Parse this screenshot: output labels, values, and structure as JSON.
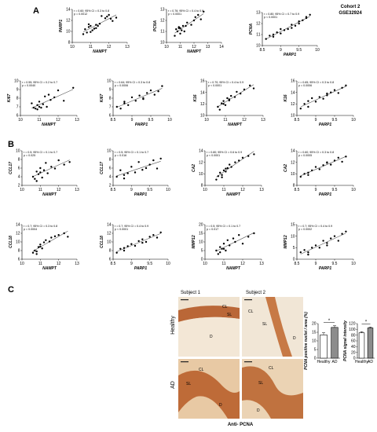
{
  "cohort": {
    "line1": "Cohort 2",
    "line2": "GSE32924"
  },
  "panel_labels": {
    "a": "A",
    "b": "B",
    "c": "C"
  },
  "microscopy": {
    "subject1": "Subject 1",
    "subject2": "Subject 2",
    "row_healthy": "Healthy",
    "row_ad": "AD",
    "footer": "Anti- PCNA",
    "labels_healthy_1": [
      "CL",
      "SL",
      "D"
    ],
    "labels_healthy_2": [
      "CL",
      "SL",
      "D"
    ],
    "labels_ad_1": [
      "CL",
      "SL",
      "D"
    ],
    "labels_ad_2": [
      "CL",
      "SL",
      "D"
    ]
  },
  "chart_data": [
    {
      "type": "scatter",
      "ylabel": "PARP1",
      "xlabel": "NAMPT",
      "xlim": [
        10,
        13
      ],
      "ylim": [
        8,
        14
      ],
      "xticks": [
        10,
        11,
        12,
        13
      ],
      "yticks": [
        8,
        10,
        12,
        14
      ],
      "stat1": "r = 0.60; 95% CI = 0.3 to 0.8",
      "stat2": "p = 0.0012",
      "x": [
        10.6,
        10.7,
        10.8,
        10.9,
        11.0,
        11.0,
        11.2,
        11.3,
        11.4,
        11.5,
        11.6,
        11.8,
        11.9,
        12.0,
        12.1,
        12.2,
        12.4,
        11.1,
        10.9,
        11.3
      ],
      "y": [
        9.5,
        10.4,
        9.8,
        10.8,
        11.0,
        9.9,
        10.5,
        11.2,
        11.0,
        11.4,
        12.8,
        12.4,
        12.7,
        13.0,
        12.3,
        11.9,
        12.5,
        10.2,
        11.3,
        10.6
      ]
    },
    {
      "type": "scatter",
      "ylabel": "PCNA",
      "xlabel": "NAMPT",
      "xlim": [
        10,
        14
      ],
      "ylim": [
        10,
        13
      ],
      "xticks": [
        10,
        11,
        12,
        13,
        14
      ],
      "yticks": [
        10,
        11,
        12,
        13
      ],
      "stat1": "r = 0.76; 95% CI = 0.4 to 0.9",
      "stat2": "p < 0.0001",
      "x": [
        10.6,
        10.7,
        10.8,
        10.9,
        11.0,
        11.1,
        11.2,
        11.3,
        11.5,
        11.8,
        12.0,
        12.3,
        12.5,
        12.7,
        11.0,
        10.9,
        11.4,
        12.1
      ],
      "y": [
        10.6,
        11.2,
        11.0,
        11.4,
        11.3,
        11.1,
        11.5,
        11.0,
        11.8,
        11.6,
        12.0,
        12.5,
        12.1,
        12.8,
        10.8,
        11.3,
        11.5,
        12.3
      ]
    },
    {
      "type": "scatter",
      "ylabel": "PCNA",
      "xlabel": "PARP1",
      "xlim": [
        8.5,
        10.0
      ],
      "ylim": [
        10,
        13
      ],
      "xticks": [
        8.5,
        9.0,
        9.5,
        10.0
      ],
      "yticks": [
        10,
        11,
        12,
        13
      ],
      "stat1": "r = 0.80; 95% CI = 0.7 to 0.9",
      "stat2": "p < 0.0001",
      "x": [
        8.6,
        8.7,
        8.8,
        8.9,
        9.0,
        9.1,
        9.2,
        9.3,
        9.4,
        9.5,
        9.6,
        9.7,
        9.8,
        8.8,
        9.0,
        9.3,
        9.5,
        9.7
      ],
      "y": [
        10.6,
        10.9,
        11.0,
        11.2,
        11.1,
        11.4,
        11.5,
        11.6,
        11.8,
        12.0,
        12.3,
        12.5,
        12.8,
        10.8,
        11.5,
        11.9,
        12.2,
        12.6
      ]
    },
    {
      "type": "scatter",
      "ylabel": "Ki67",
      "xlabel": "NAMPT",
      "xlim": [
        10,
        13
      ],
      "ylim": [
        6,
        10
      ],
      "xticks": [
        10,
        11,
        12,
        13
      ],
      "yticks": [
        6,
        7,
        8,
        9,
        10
      ],
      "stat1": "r = 0.55; 95% CI = 0.2 to 0.7",
      "stat2": "p = 0.0040",
      "x": [
        10.6,
        10.7,
        10.8,
        10.9,
        11.0,
        11.1,
        11.2,
        11.3,
        11.4,
        11.5,
        11.6,
        11.8,
        12.0,
        12.3,
        12.8,
        10.9,
        11.0
      ],
      "y": [
        7.4,
        6.9,
        6.8,
        7.2,
        7.6,
        6.9,
        7.3,
        8.2,
        7.0,
        8.4,
        7.8,
        8.1,
        8.9,
        7.7,
        9.2,
        6.7,
        7.0
      ]
    },
    {
      "type": "scatter",
      "ylabel": "Ki67",
      "xlabel": "PARP1",
      "xlim": [
        8.5,
        10.0
      ],
      "ylim": [
        6,
        10
      ],
      "xticks": [
        8.5,
        9.0,
        9.5,
        10.0
      ],
      "yticks": [
        6,
        7,
        8,
        9,
        10
      ],
      "stat1": "r = 0.64; 95% CI = 0.3 to 0.8",
      "stat2": "p = 0.0006",
      "x": [
        8.6,
        8.7,
        8.8,
        8.9,
        9.0,
        9.1,
        9.2,
        9.3,
        9.4,
        9.5,
        9.6,
        9.7,
        9.8,
        8.8,
        9.3
      ],
      "y": [
        7.0,
        6.8,
        7.4,
        7.2,
        8.1,
        7.7,
        8.3,
        7.9,
        8.6,
        8.9,
        8.4,
        8.8,
        9.4,
        7.6,
        8.0
      ]
    },
    {
      "type": "scatter",
      "ylabel": "K16",
      "xlabel": "NAMPT",
      "xlim": [
        10,
        13
      ],
      "ylim": [
        10,
        16
      ],
      "xticks": [
        10,
        11,
        12,
        13
      ],
      "yticks": [
        10,
        12,
        14,
        16
      ],
      "stat1": "r = 0.70; 95% CI = 0.4 to 0.9",
      "stat2": "p < 0.0001",
      "x": [
        10.6,
        10.7,
        10.8,
        10.9,
        11.0,
        11.1,
        11.2,
        11.3,
        11.5,
        11.6,
        11.8,
        12.0,
        12.3,
        12.5,
        10.9,
        11.2
      ],
      "y": [
        11.5,
        11.0,
        12.1,
        12.5,
        11.8,
        13.0,
        12.6,
        13.4,
        13.2,
        14.1,
        13.8,
        14.5,
        15.2,
        14.7,
        12.0,
        12.8
      ]
    },
    {
      "type": "scatter",
      "ylabel": "K16",
      "xlabel": "PARP1",
      "xlim": [
        8.5,
        10.0
      ],
      "ylim": [
        10,
        16
      ],
      "xticks": [
        8.5,
        9.0,
        9.5,
        10.0
      ],
      "yticks": [
        10,
        12,
        14,
        16
      ],
      "stat1": "r = 0.65; 95% CI = 0.3 to 0.8",
      "stat2": "p = 0.0006",
      "x": [
        8.6,
        8.7,
        8.8,
        8.9,
        9.0,
        9.1,
        9.2,
        9.3,
        9.4,
        9.5,
        9.6,
        9.7,
        9.8,
        8.8,
        9.3
      ],
      "y": [
        11.2,
        12.0,
        11.5,
        13.0,
        12.4,
        13.2,
        12.9,
        13.8,
        14.0,
        14.4,
        13.9,
        14.8,
        15.2,
        12.5,
        13.5
      ]
    },
    {
      "type": "scatter",
      "ylabel": "CCL17",
      "xlabel": "NAMPT",
      "xlim": [
        10,
        13
      ],
      "ylim": [
        2,
        10
      ],
      "xticks": [
        10,
        11,
        12,
        13
      ],
      "yticks": [
        2,
        4,
        6,
        8,
        10
      ],
      "stat1": "r = 0.5; 95% CI = 0.1 to 0.7",
      "stat2": "p = 0.025",
      "x": [
        10.6,
        10.7,
        10.8,
        10.9,
        11.0,
        11.1,
        11.2,
        11.3,
        11.4,
        11.6,
        11.8,
        12.0,
        12.3,
        12.6,
        10.8,
        11.0
      ],
      "y": [
        4.0,
        3.5,
        5.2,
        4.6,
        6.0,
        3.8,
        5.5,
        7.2,
        4.8,
        6.3,
        5.9,
        7.8,
        6.8,
        7.4,
        3.0,
        5.0
      ]
    },
    {
      "type": "scatter",
      "ylabel": "CCL17",
      "xlabel": "PARP1",
      "xlim": [
        8.5,
        10.0
      ],
      "ylim": [
        2,
        10
      ],
      "xticks": [
        8.5,
        9.0,
        9.5,
        10.0
      ],
      "yticks": [
        2,
        4,
        6,
        8,
        10
      ],
      "stat1": "r = 0.5; 95% CI = 0.1 to 0.7",
      "stat2": "p = 0.016",
      "x": [
        8.6,
        8.7,
        8.8,
        8.9,
        9.0,
        9.1,
        9.2,
        9.3,
        9.5,
        9.6,
        9.7,
        9.8,
        8.8,
        9.4
      ],
      "y": [
        4.0,
        5.5,
        3.6,
        4.8,
        6.3,
        5.0,
        7.4,
        5.6,
        6.8,
        7.8,
        5.9,
        8.2,
        4.4,
        6.0
      ]
    },
    {
      "type": "scatter",
      "ylabel": "CA2",
      "xlabel": "NAMPT",
      "xlim": [
        10,
        13
      ],
      "ylim": [
        8,
        14
      ],
      "xticks": [
        10,
        11,
        12,
        13
      ],
      "yticks": [
        8,
        10,
        12,
        14
      ],
      "stat1": "r = 0.80; 95% CI = 0.6 to 0.9",
      "stat2": "p < 0.0001",
      "x": [
        10.6,
        10.7,
        10.8,
        10.9,
        11.0,
        11.1,
        11.2,
        11.3,
        11.4,
        11.6,
        11.8,
        12.0,
        12.3,
        12.6,
        10.9,
        11.1
      ],
      "y": [
        9.0,
        9.6,
        10.2,
        9.8,
        10.6,
        10.9,
        11.0,
        11.6,
        11.2,
        12.0,
        12.3,
        12.8,
        13.1,
        13.4,
        9.4,
        10.4
      ]
    },
    {
      "type": "scatter",
      "ylabel": "CA2",
      "xlabel": "PARP1",
      "xlim": [
        8.5,
        10.0
      ],
      "ylim": [
        8,
        14
      ],
      "xticks": [
        8.5,
        9.0,
        9.5,
        10.0
      ],
      "yticks": [
        8,
        10,
        12,
        14
      ],
      "stat1": "r = 0.60; 95% CI = 0.3 to 0.8",
      "stat2": "p = 0.0005",
      "x": [
        8.6,
        8.7,
        8.8,
        8.9,
        9.0,
        9.1,
        9.2,
        9.3,
        9.4,
        9.5,
        9.6,
        9.7,
        9.8,
        8.8,
        9.3
      ],
      "y": [
        9.5,
        10.0,
        9.8,
        10.6,
        11.2,
        10.8,
        11.5,
        12.0,
        11.6,
        12.3,
        12.8,
        12.1,
        13.0,
        10.2,
        11.9
      ]
    },
    {
      "type": "scatter",
      "ylabel": "CCL18",
      "xlabel": "NAMPT",
      "xlim": [
        10,
        13
      ],
      "ylim": [
        6,
        14
      ],
      "xticks": [
        10,
        11,
        12,
        13
      ],
      "yticks": [
        6,
        8,
        10,
        12,
        14
      ],
      "stat1": "r = 0.7; 95% CI = 0.3 to 0.8",
      "stat2": "p = 0.0004",
      "x": [
        10.6,
        10.7,
        10.8,
        10.9,
        11.0,
        11.1,
        11.2,
        11.3,
        11.5,
        11.6,
        11.8,
        12.0,
        12.3,
        12.5,
        10.8,
        11.0
      ],
      "y": [
        7.5,
        8.0,
        7.2,
        8.8,
        9.4,
        8.5,
        9.9,
        10.4,
        10.1,
        11.0,
        11.3,
        11.6,
        12.0,
        11.2,
        7.8,
        8.9
      ]
    },
    {
      "type": "scatter",
      "ylabel": "CCL18",
      "xlabel": "PARP1",
      "xlim": [
        8.5,
        10.0
      ],
      "ylim": [
        6,
        14
      ],
      "xticks": [
        8.5,
        9.0,
        9.5,
        10.0
      ],
      "yticks": [
        6,
        8,
        10,
        12,
        14
      ],
      "stat1": "r = 0.7; 95% CI = 0.4 to 0.9",
      "stat2": "p < 0.0001",
      "x": [
        8.6,
        8.7,
        8.8,
        8.9,
        9.0,
        9.1,
        9.2,
        9.3,
        9.4,
        9.5,
        9.6,
        9.7,
        9.8,
        8.8,
        9.3
      ],
      "y": [
        7.5,
        8.4,
        8.0,
        9.0,
        9.5,
        9.1,
        10.2,
        10.6,
        10.0,
        11.2,
        11.6,
        11.0,
        12.2,
        8.6,
        9.8
      ]
    },
    {
      "type": "scatter",
      "ylabel": "MMP12",
      "xlabel": "NAMPT",
      "xlim": [
        10,
        13
      ],
      "ylim": [
        0,
        20
      ],
      "xticks": [
        10,
        11,
        12,
        13
      ],
      "yticks": [
        0,
        5,
        10,
        15,
        20
      ],
      "stat1": "r = 0.5; 95% CI = 0.1 to 0.7",
      "stat2": "p = 0.017",
      "x": [
        10.6,
        10.7,
        10.8,
        10.9,
        11.0,
        11.1,
        11.2,
        11.3,
        11.5,
        11.6,
        11.8,
        12.0,
        12.3,
        12.6,
        10.8,
        11.0
      ],
      "y": [
        5,
        3,
        7,
        6,
        9,
        5,
        11,
        8,
        12,
        10,
        14,
        9,
        13,
        15,
        4,
        6
      ]
    },
    {
      "type": "scatter",
      "ylabel": "MMP12",
      "xlabel": "PARP1",
      "xlim": [
        8.5,
        10.0
      ],
      "ylim": [
        0,
        15
      ],
      "xticks": [
        8.5,
        9.0,
        9.5,
        10.0
      ],
      "yticks": [
        0,
        5,
        10,
        15
      ],
      "stat1": "r = 0.7; 95% CI = 0.4 to 0.9",
      "stat2": "p = 0.0002",
      "x": [
        8.6,
        8.7,
        8.8,
        8.9,
        9.0,
        9.1,
        9.2,
        9.3,
        9.4,
        9.5,
        9.6,
        9.7,
        9.8,
        8.8,
        9.3
      ],
      "y": [
        3,
        4,
        2,
        5,
        6,
        5,
        8,
        7,
        9,
        10,
        8,
        11,
        12,
        3,
        6
      ]
    },
    {
      "type": "bar",
      "ylabel": "PCNA positive nuclei / area (%)",
      "categories": [
        "Healthy",
        "AD"
      ],
      "values": [
        13.5,
        17.8
      ],
      "errors": [
        1.2,
        1.0
      ],
      "ylim": [
        0,
        20
      ],
      "yticks": [
        0,
        5,
        10,
        15,
        20
      ],
      "significance": "*",
      "colors": [
        "#ffffff",
        "#8c8c8c"
      ]
    },
    {
      "type": "bar",
      "ylabel": "PCNA signal intensity",
      "categories": [
        "Healthy",
        "AD"
      ],
      "values": [
        88,
        105
      ],
      "errors": [
        4,
        3
      ],
      "ylim": [
        0,
        120
      ],
      "yticks": [
        0,
        20,
        40,
        60,
        80,
        100,
        120
      ],
      "significance": "*",
      "colors": [
        "#ffffff",
        "#8c8c8c"
      ]
    }
  ]
}
